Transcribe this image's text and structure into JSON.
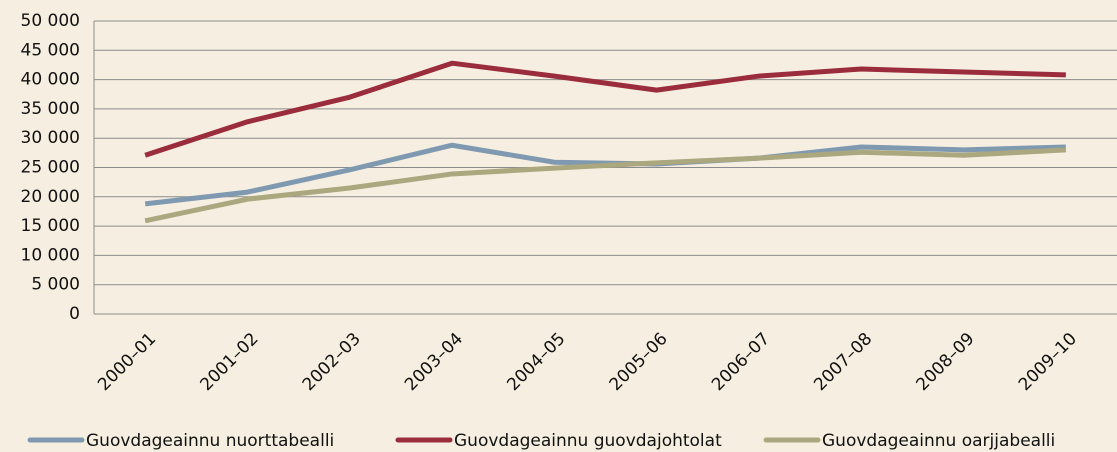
{
  "chart_data": {
    "type": "line",
    "categories": [
      "2000–01",
      "2001–02",
      "2002–03",
      "2003–04",
      "2004–05",
      "2005–06",
      "2006–07",
      "2007–08",
      "2008–09",
      "2009–10"
    ],
    "series": [
      {
        "name": "Guovdageainnu nuorttabealli",
        "color": "#7f9ab0",
        "values": [
          18800,
          20800,
          24600,
          28800,
          25900,
          25600,
          26600,
          28500,
          28000,
          28500
        ]
      },
      {
        "name": "Guovdageainnu guovdajohtolat",
        "color": "#9b2c3c",
        "values": [
          27100,
          32800,
          37000,
          42800,
          40600,
          38200,
          40600,
          41800,
          41300,
          40800
        ]
      },
      {
        "name": "Guovdageainnu oarjjabealli",
        "color": "#aba77f",
        "values": [
          15900,
          19600,
          21500,
          23900,
          24900,
          25800,
          26600,
          27600,
          27100,
          28000
        ]
      }
    ],
    "ylim": [
      0,
      50000
    ],
    "yticks": [
      0,
      {
        "value": 5000,
        "label": "5 000"
      },
      {
        "value": 10000,
        "label": "10 000"
      },
      {
        "value": 15000,
        "label": "15 000"
      },
      {
        "value": 20000,
        "label": "20 000"
      },
      {
        "value": 25000,
        "label": "25 000"
      },
      {
        "value": 30000,
        "label": "30 000"
      },
      {
        "value": 35000,
        "label": "35 000"
      },
      {
        "value": 40000,
        "label": "40 000"
      },
      {
        "value": 45000,
        "label": "45 000"
      },
      {
        "value": 50000,
        "label": "50 000"
      }
    ],
    "grid": true
  }
}
